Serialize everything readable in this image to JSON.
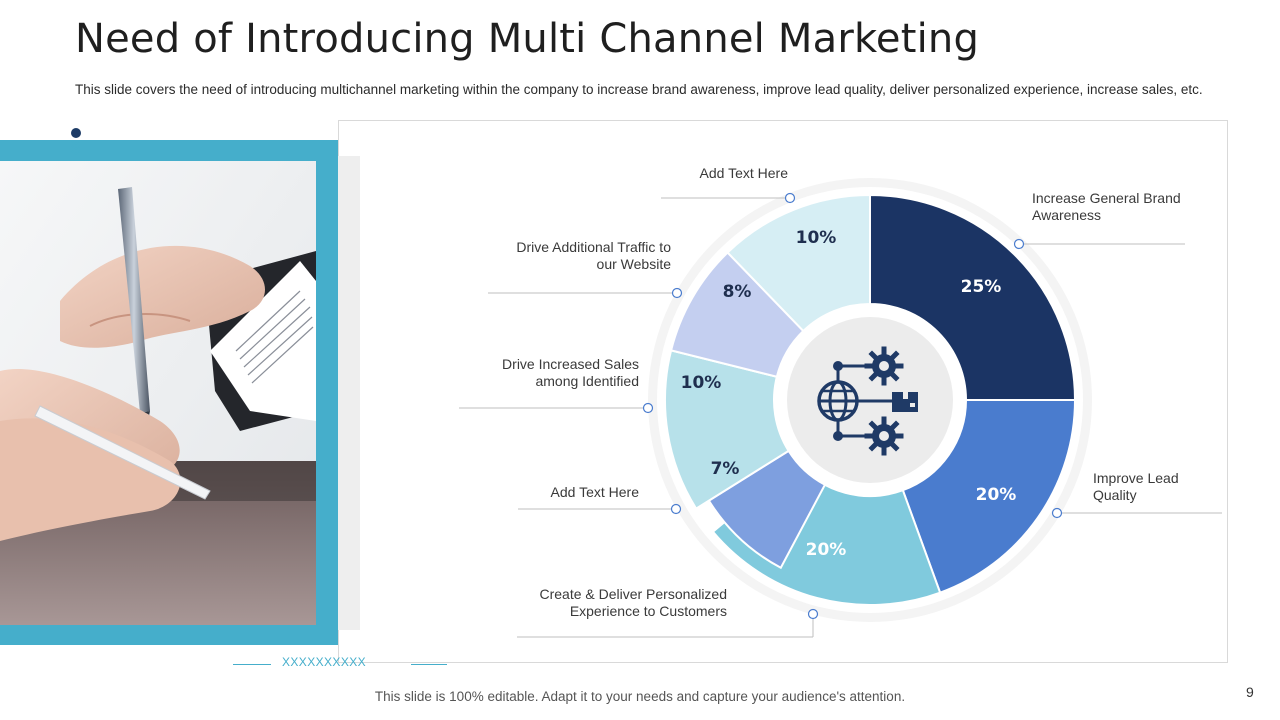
{
  "slide": {
    "title": "Need of Introducing Multi Channel Marketing",
    "subtitle": "This slide covers the need of introducing multichannel marketing within the company to increase brand awareness, improve lead quality, deliver personalized experience, increase sales, etc.",
    "footer": "This slide is 100% editable. Adapt it to your needs and capture your audience's attention.",
    "page_number": "9",
    "decor_text": "XXXXXXXXXX"
  },
  "center_icon": "globe-gears-box-icon",
  "colors": {
    "teal": "#45aecb",
    "navy": "#1d3b66"
  },
  "chart_data": {
    "type": "pie",
    "unit": "%",
    "slices": [
      {
        "label": "Increase General Brand Awareness",
        "value": 25,
        "display": "25%",
        "color": "#1b3464",
        "text_color": "#ffffff"
      },
      {
        "label": "Improve Lead Quality",
        "value": 20,
        "display": "20%",
        "color": "#4a7cce",
        "text_color": "#ffffff"
      },
      {
        "label": "Create & Deliver Personalized Experience to Customers",
        "value": 20,
        "display": "20%",
        "color": "#80cadd",
        "text_color": "#ffffff"
      },
      {
        "label": "Add Text Here",
        "value": 7,
        "display": "7%",
        "color": "#7e9fdf",
        "text_color": "#1f2f4f"
      },
      {
        "label": "Drive Increased Sales among Identified",
        "value": 10,
        "display": "10%",
        "color": "#b7e1ea",
        "text_color": "#1f2f4f"
      },
      {
        "label": "Drive Additional Traffic to our Website",
        "value": 8,
        "display": "8%",
        "color": "#c4cff0",
        "text_color": "#1f2f4f"
      },
      {
        "label": "Add Text Here",
        "value": 10,
        "display": "10%",
        "color": "#d6eef4",
        "text_color": "#1f2f4f"
      }
    ],
    "callouts": [
      {
        "lines": [
          "Increase General Brand",
          "Awareness"
        ]
      },
      {
        "lines": [
          "Improve Lead",
          "Quality"
        ]
      },
      {
        "lines": [
          "Create & Deliver Personalized",
          "Experience to Customers"
        ]
      },
      {
        "lines": [
          "Add Text Here"
        ]
      },
      {
        "lines": [
          "Drive Increased Sales",
          "among Identified"
        ]
      },
      {
        "lines": [
          "Drive Additional  Traffic to",
          "our Website"
        ]
      },
      {
        "lines": [
          "Add Text Here"
        ]
      }
    ]
  }
}
